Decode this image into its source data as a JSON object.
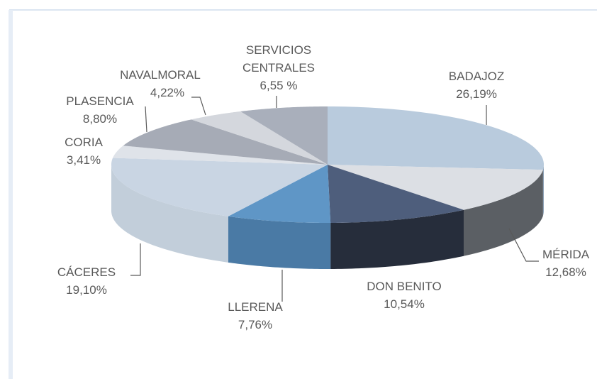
{
  "chart_data": {
    "type": "pie3d",
    "categories": [
      "BADAJOZ",
      "MÉRIDA",
      "DON BENITO",
      "LLERENA",
      "CÁCERES",
      "CORIA",
      "PLASENCIA",
      "NAVALMORAL",
      "SERVICIOS CENTRALES"
    ],
    "values": [
      26.19,
      12.68,
      10.54,
      7.76,
      19.1,
      3.41,
      8.8,
      4.22,
      6.55
    ],
    "value_labels": [
      "26,19%",
      "12,68%",
      "10,54%",
      "7,76%",
      "19,10%",
      "3,41%",
      "8,80%",
      "4,22%",
      "6,55 %"
    ],
    "colors": [
      "#b9cbdd",
      "#dcdfe4",
      "#4e5e7c",
      "#5f96c6",
      "#c9d5e3",
      "#dfe3e9",
      "#a6abb6",
      "#d4d7dd",
      "#a9afbb"
    ],
    "side_colors": [
      "#8fa3b8",
      "#5b5f64",
      "#262d3b",
      "#4a7aa5",
      "#c2ceda",
      "#b8bfc9",
      "#858a94",
      "#a8abb2",
      "#8a909b"
    ]
  }
}
